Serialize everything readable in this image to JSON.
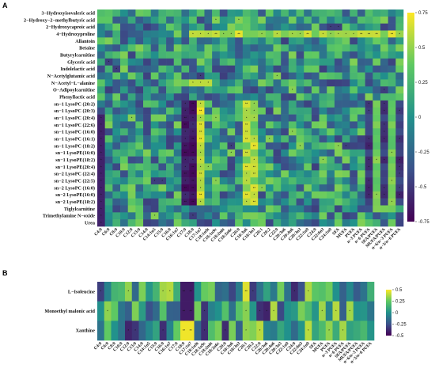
{
  "chart_data": [
    {
      "panel": "A",
      "type": "heatmap",
      "rows": [
        "3−Hydroxyisovaleric acid",
        "2−Hydroxy−2−methylbutyric acid",
        "2−Hydroxycaproic acid",
        "4−Hydroxyproline",
        "Allantoin",
        "Betaine",
        "Butyrylcarnitine",
        "Glyceric acid",
        "Indolelactic acid",
        "N−Acetylglutamic acid",
        "N−Acetyl−L−alanine",
        "O−Adipoylcarnitine",
        "Phenyllactic acid",
        "sn−1 LysoPC (20:2)",
        "sn−1 LysoPC (20:3)",
        "sn−1 LysoPC (20:4)",
        "sn−1 LysoPC (22:6)",
        "sn−1 LysoPC (16:0)",
        "sn−1 LysoPC (16:1)",
        "sn−1 LysoPC (18:2)",
        "sn−1 LysoPE(16:0)",
        "sn−1 LysoPE(18:2)",
        "sn−1 LysoPE(20:4)",
        "sn−2 LysoPC (22:4)",
        "sn−2 LysoPC (22:5)",
        "sn−2 LysoPC (16:0)",
        "sn−2 LysoPE(16:0)",
        "sn−2 LysoPE(18:2)",
        "Tiglylcarnitine",
        "Trimethylamine N−oxide",
        "Urea"
      ],
      "columns": [
        "C4:0",
        "C6:0",
        "C8:0",
        "C10:0",
        "C12:0",
        "C13:0",
        "C14:0",
        "C14:1n5",
        "C15:0",
        "C16:0",
        "C16:1n7",
        "C17:0",
        "C18:0",
        "C17:1n7",
        "C18:1n9t",
        "C18:1n9c",
        "C18:2n6t",
        "C18:2n6c",
        "C20:0",
        "C18:3n6",
        "C18:3n3",
        "C20:1",
        "C20:2",
        "C22:0",
        "C20:3n6",
        "C20:4n6",
        "C20:3n3",
        "C22:1n9",
        "C24:0",
        "C22:6n3",
        "C24:1n9",
        "SFA",
        "MUFA",
        "PUFA",
        "n−3 PUFA",
        "n−6 PUFA",
        "SFA/PUFA",
        "MUFA/PUFA",
        "n−6/n−3 PUFA",
        "n−3/n−6 PUFA"
      ],
      "colorbar": {
        "min": -0.75,
        "max": 0.75,
        "ticks": [
          0.75,
          0.5,
          0.25,
          0,
          -0.25,
          -0.5,
          -0.75
        ]
      },
      "colorscale": [
        "#440154",
        "#3b528b",
        "#21918c",
        "#5ec962",
        "#fde725"
      ],
      "significance": [
        "*",
        "**"
      ]
    },
    {
      "panel": "B",
      "type": "heatmap",
      "rows": [
        "L−Isoleucine",
        "Monoethyl malonic acid",
        "Xanthine"
      ],
      "columns": [
        "C4:0",
        "C6:0",
        "C8:0",
        "C10:0",
        "C12:0",
        "C13:0",
        "C14:0",
        "C14:1n5",
        "C15:0",
        "C16:0",
        "C16:1n7",
        "C17:0",
        "C18:0",
        "C17:1n7",
        "C18:1n9t",
        "C18:1n9c",
        "C18:2n6t",
        "C18:2n6c",
        "C20:0",
        "C18:3n6",
        "C18:3n3",
        "C20:1",
        "C20:2",
        "C22:0",
        "C20:3n6",
        "C20:4n6",
        "C20:3n3",
        "C22:1n9",
        "C24:0",
        "C22:6n3",
        "C24:1n9",
        "SFA",
        "MUFA",
        "PUFA",
        "n−3 PUFA",
        "n−6 PUFA",
        "SFA/PUFA",
        "MUFA/PUFA",
        "n−6/n−3 PUFA",
        "n−3/n−6 PUFA"
      ],
      "colorbar": {
        "min": -0.5,
        "max": 0.5,
        "ticks": [
          0.5,
          0.25,
          0,
          -0.25,
          -0.5
        ]
      },
      "colorscale": [
        "#440154",
        "#3b528b",
        "#21918c",
        "#5ec962",
        "#fde725"
      ],
      "significance": [
        "*",
        "**"
      ]
    }
  ]
}
